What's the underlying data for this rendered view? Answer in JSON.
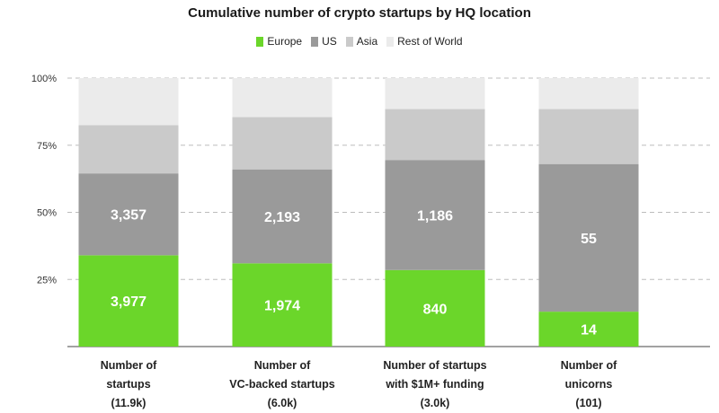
{
  "chart_data": {
    "type": "bar",
    "stacked": true,
    "title": "Cumulative number of crypto startups by HQ location",
    "ylim": [
      0,
      100
    ],
    "yticks": [
      "25%",
      "50%",
      "75%",
      "100%"
    ],
    "ytick_values": [
      25,
      50,
      75,
      100
    ],
    "grid": true,
    "legend_position": "top",
    "categories": [
      [
        "Number of",
        "startups",
        "(11.9k)"
      ],
      [
        "Number of",
        "VC-backed startups",
        "(6.0k)"
      ],
      [
        "Number of startups",
        "with $1M+ funding",
        "(3.0k)"
      ],
      [
        "Number of",
        "unicorns",
        "(101)"
      ]
    ],
    "series": [
      {
        "name": "Europe",
        "color": "#6bd62a",
        "values": [
          34,
          31,
          28.5,
          13
        ],
        "labels": [
          "3,977",
          "1,974",
          "840",
          "14"
        ]
      },
      {
        "name": "US",
        "color": "#9a9a9a",
        "values": [
          30.5,
          35,
          41,
          55
        ],
        "labels": [
          "3,357",
          "2,193",
          "1,186",
          "55"
        ]
      },
      {
        "name": "Asia",
        "color": "#cacaca",
        "values": [
          18,
          19.5,
          19,
          20.5
        ],
        "labels": [
          "",
          "",
          "",
          ""
        ]
      },
      {
        "name": "Rest of World",
        "color": "#ebebeb",
        "values": [
          17.5,
          14.5,
          11.5,
          11.5
        ],
        "labels": [
          "",
          "",
          "",
          ""
        ]
      }
    ]
  }
}
